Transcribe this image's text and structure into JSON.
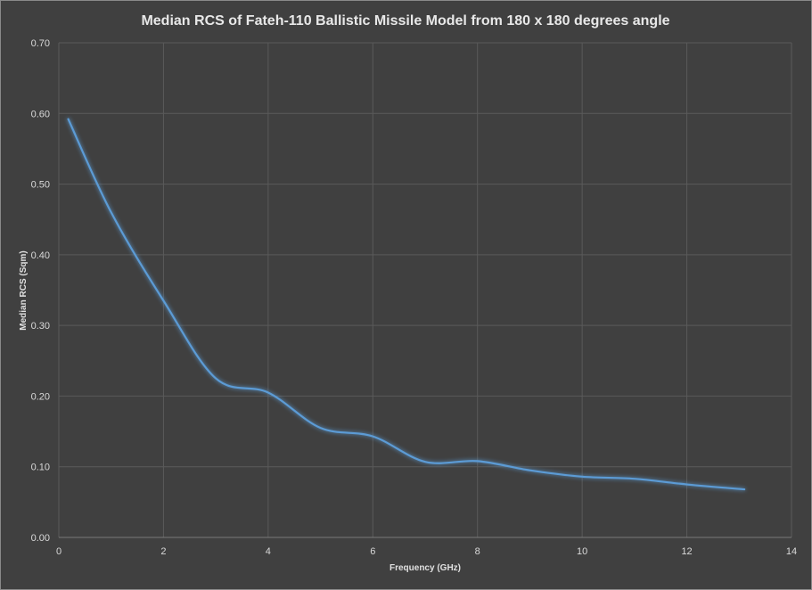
{
  "chart_data": {
    "type": "line",
    "title": "Median RCS of Fateh-110 Ballistic Missile Model from 180 x 180 degrees angle",
    "xlabel": "Frequency  (GHz)",
    "ylabel": "Median RCS (Sqm)",
    "xlim": [
      0,
      14
    ],
    "ylim": [
      0,
      0.7
    ],
    "xticks": [
      0,
      2,
      4,
      6,
      8,
      10,
      12,
      14
    ],
    "xtick_labels": [
      "0",
      "2",
      "4",
      "6",
      "8",
      "10",
      "12",
      "14"
    ],
    "yticks": [
      0,
      0.1,
      0.2,
      0.3,
      0.4,
      0.5,
      0.6,
      0.7
    ],
    "ytick_labels": [
      "0.00",
      "0.10",
      "0.20",
      "0.30",
      "0.40",
      "0.50",
      "0.60",
      "0.70"
    ],
    "grid": true,
    "line_color": "#5b9bd5",
    "series": [
      {
        "x": [
          0.18,
          1.0,
          2.0,
          3.0,
          4.0,
          5.0,
          6.0,
          7.0,
          8.0,
          9.0,
          10.0,
          11.0,
          12.0,
          13.1
        ],
        "y": [
          0.592,
          0.46,
          0.335,
          0.225,
          0.205,
          0.155,
          0.143,
          0.107,
          0.108,
          0.095,
          0.086,
          0.083,
          0.075,
          0.068
        ]
      }
    ]
  }
}
